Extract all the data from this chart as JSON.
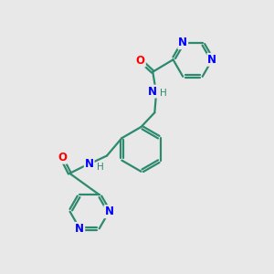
{
  "background_color": "#e8e8e8",
  "bond_color": "#2d8a6e",
  "N_color": "#0000ff",
  "O_color": "#ff0000",
  "line_width": 1.6,
  "font_size_atom": 8.5,
  "fig_size": [
    3.0,
    3.0
  ],
  "dpi": 100,
  "xlim": [
    0,
    10
  ],
  "ylim": [
    0,
    10
  ]
}
